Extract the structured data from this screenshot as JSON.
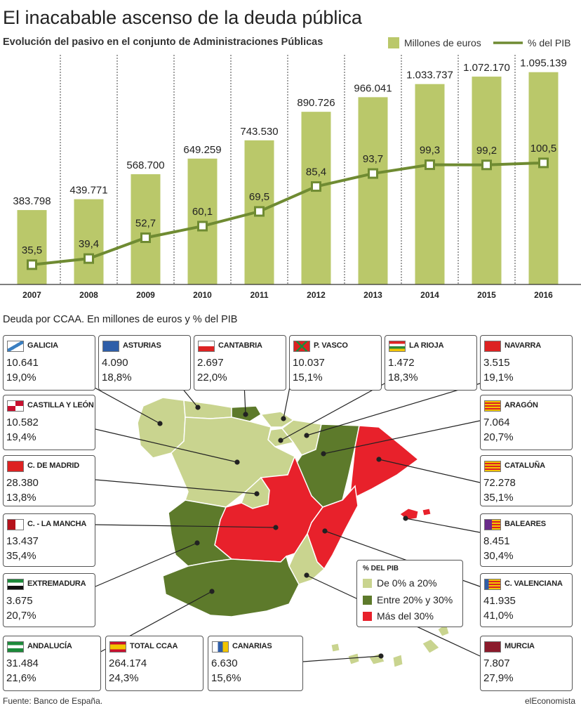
{
  "title": "El inacabable ascenso de la deuda pública",
  "subtitle": "Evolución del pasivo en el conjunto de Administraciones Públicas",
  "colors": {
    "bars": "#bac86a",
    "line": "#6f8b32",
    "light": "#c9d48f",
    "dark": "#5d7a2b",
    "red": "#e8212b"
  },
  "chart_data": {
    "type": "bar",
    "categories": [
      "2007",
      "2008",
      "2009",
      "2010",
      "2011",
      "2012",
      "2013",
      "2014",
      "2015",
      "2016"
    ],
    "series": [
      {
        "name": "Millones de euros",
        "values": [
          383798,
          439771,
          568700,
          649259,
          743530,
          890726,
          966041,
          1033737,
          1072170,
          1095139
        ],
        "labels": [
          "383.798",
          "439.771",
          "568.700",
          "649.259",
          "743.530",
          "890.726",
          "966.041",
          "1.033.737",
          "1.072.170",
          "1.095.139"
        ]
      },
      {
        "name": "% del PIB",
        "type": "line",
        "values": [
          35.5,
          39.4,
          52.7,
          60.1,
          69.5,
          85.4,
          93.7,
          99.3,
          99.2,
          100.5
        ],
        "labels": [
          "35,5",
          "39,4",
          "52,7",
          "60,1",
          "69,5",
          "85,4",
          "93,7",
          "99,3",
          "99,2",
          "100,5"
        ]
      }
    ]
  },
  "section2_title": "Deuda por CCAA. En millones de euros y % del PIB",
  "regions": [
    {
      "key": "galicia",
      "name": "GALICIA",
      "value": "10.641",
      "pct": "19,0%"
    },
    {
      "key": "asturias",
      "name": "ASTURIAS",
      "value": "4.090",
      "pct": "18,8%"
    },
    {
      "key": "cantabria",
      "name": "CANTABRIA",
      "value": "2.697",
      "pct": "22,0%"
    },
    {
      "key": "pvasco",
      "name": "P. VASCO",
      "value": "10.037",
      "pct": "15,1%"
    },
    {
      "key": "larioja",
      "name": "LA RIOJA",
      "value": "1.472",
      "pct": "18,3%"
    },
    {
      "key": "navarra",
      "name": "NAVARRA",
      "value": "3.515",
      "pct": "19,1%"
    },
    {
      "key": "castillaleon",
      "name": "CASTILLA Y LEÓN",
      "value": "10.582",
      "pct": "19,4%"
    },
    {
      "key": "aragon",
      "name": "ARAGÓN",
      "value": "7.064",
      "pct": "20,7%"
    },
    {
      "key": "madrid",
      "name": "C. DE MADRID",
      "value": "28.380",
      "pct": "13,8%"
    },
    {
      "key": "cataluna",
      "name": "CATALUÑA",
      "value": "72.278",
      "pct": "35,1%"
    },
    {
      "key": "mancha",
      "name": "C. - LA MANCHA",
      "value": "13.437",
      "pct": "35,4%"
    },
    {
      "key": "baleares",
      "name": "BALEARES",
      "value": "8.451",
      "pct": "30,4%"
    },
    {
      "key": "extremadura",
      "name": "EXTREMADURA",
      "value": "3.675",
      "pct": "20,7%"
    },
    {
      "key": "valenciana",
      "name": "C. VALENCIANA",
      "value": "41.935",
      "pct": "41,0%"
    },
    {
      "key": "andalucia",
      "name": "ANDALUCÍA",
      "value": "31.484",
      "pct": "21,6%"
    },
    {
      "key": "total",
      "name": "TOTAL CCAA",
      "value": "264.174",
      "pct": "24,3%"
    },
    {
      "key": "canarias",
      "name": "CANARIAS",
      "value": "6.630",
      "pct": "15,6%"
    },
    {
      "key": "murcia",
      "name": "MURCIA",
      "value": "7.807",
      "pct": "27,9%"
    }
  ],
  "pib_legend": {
    "title": "% DEL PIB",
    "items": [
      {
        "label": "De 0% a 20%",
        "color": "#c9d48f"
      },
      {
        "label": "Entre 20% y 30%",
        "color": "#5d7a2b"
      },
      {
        "label": "Más del 30%",
        "color": "#e8212b"
      }
    ]
  },
  "source": "Fuente: Banco de España.",
  "brand": "elEconomista"
}
